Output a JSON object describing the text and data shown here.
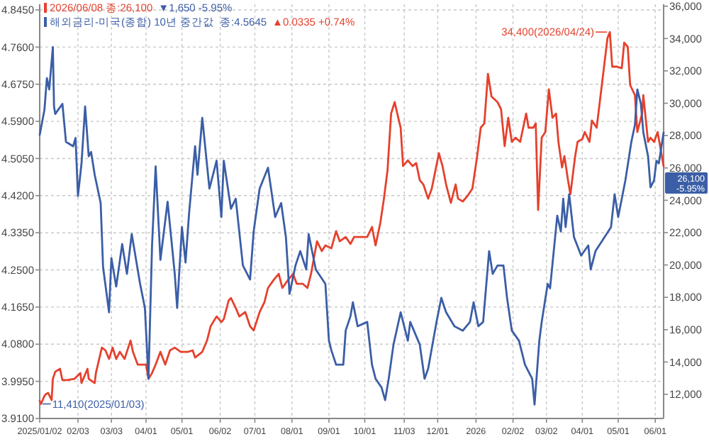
{
  "chart_data": {
    "type": "line",
    "xlim": [
      "2025-01-02",
      "2026-06-08"
    ],
    "xticks": [
      {
        "value": "2025-01-02",
        "label": "2025/01/02"
      },
      {
        "value": "2025-02-03",
        "label": "02/03"
      },
      {
        "value": "2025-03-03",
        "label": "03/03"
      },
      {
        "value": "2025-04-01",
        "label": "04/01"
      },
      {
        "value": "2025-05-01",
        "label": "05/01"
      },
      {
        "value": "2025-06-02",
        "label": "06/02"
      },
      {
        "value": "2025-07-01",
        "label": "07/01"
      },
      {
        "value": "2025-08-01",
        "label": "08/01"
      },
      {
        "value": "2025-09-01",
        "label": "09/01"
      },
      {
        "value": "2025-10-01",
        "label": "10/01"
      },
      {
        "value": "2025-11-03",
        "label": "11/03"
      },
      {
        "value": "2025-12-01",
        "label": "12/01"
      },
      {
        "value": "2026-01-02",
        "label": "2026"
      },
      {
        "value": "2026-02-02",
        "label": "02/02"
      },
      {
        "value": "2026-03-02",
        "label": "03/02"
      },
      {
        "value": "2026-04-01",
        "label": "04/01"
      },
      {
        "value": "2026-05-01",
        "label": "05/01"
      },
      {
        "value": "2026-06-01",
        "label": "06/01"
      }
    ],
    "ylim": [
      3.91,
      4.858
    ],
    "yticks": [
      {
        "value": 3.91,
        "label": "3.9100"
      },
      {
        "value": 3.995,
        "label": "3.9950"
      },
      {
        "value": 4.08,
        "label": "4.0800"
      },
      {
        "value": 4.165,
        "label": "4.1650"
      },
      {
        "value": 4.25,
        "label": "4.2500"
      },
      {
        "value": 4.335,
        "label": "4.3350"
      },
      {
        "value": 4.42,
        "label": "4.4200"
      },
      {
        "value": 4.505,
        "label": "4.5050"
      },
      {
        "value": 4.59,
        "label": "4.5900"
      },
      {
        "value": 4.675,
        "label": "4.6750"
      },
      {
        "value": 4.76,
        "label": "4.7600"
      },
      {
        "value": 4.845,
        "label": "4.8450"
      }
    ],
    "y2lim": [
      10510,
      36120
    ],
    "y2ticks": [
      {
        "value": 12000,
        "label": "12,000"
      },
      {
        "value": 14000,
        "label": "14,000"
      },
      {
        "value": 16000,
        "label": "16,000"
      },
      {
        "value": 18000,
        "label": "18,000"
      },
      {
        "value": 20000,
        "label": "20,000"
      },
      {
        "value": 22000,
        "label": "22,000"
      },
      {
        "value": 24000,
        "label": "24,000"
      },
      {
        "value": 26000,
        "label": "26,000"
      },
      {
        "value": 28000,
        "label": "28,000"
      },
      {
        "value": 30000,
        "label": "30,000"
      },
      {
        "value": 32000,
        "label": "32,000"
      },
      {
        "value": 34000,
        "label": "34,000"
      },
      {
        "value": 36000,
        "label": "36,000"
      }
    ],
    "grid": true,
    "legend": "top left",
    "series": [
      {
        "color": "#e5412d",
        "axis": "y2",
        "x": [
          "2025-01-02",
          "2025-01-03",
          "2025-01-06",
          "2025-01-07",
          "2025-01-09",
          "2025-01-12",
          "2025-01-13",
          "2025-01-15",
          "2025-01-19",
          "2025-01-21",
          "2025-01-25",
          "2025-01-31",
          "2025-02-05",
          "2025-02-06",
          "2025-02-11",
          "2025-02-12",
          "2025-02-17",
          "2025-02-18",
          "2025-02-23",
          "2025-02-26",
          "2025-03-01",
          "2025-03-04",
          "2025-03-07",
          "2025-03-10",
          "2025-03-14",
          "2025-03-19",
          "2025-03-21",
          "2025-03-25",
          "2025-04-01",
          "2025-04-03",
          "2025-04-06",
          "2025-04-09",
          "2025-04-13",
          "2025-04-17",
          "2025-04-21",
          "2025-04-25",
          "2025-04-30",
          "2025-05-06",
          "2025-05-10",
          "2025-05-12",
          "2025-05-18",
          "2025-05-22",
          "2025-05-25",
          "2025-05-30",
          "2025-06-03",
          "2025-06-05",
          "2025-06-09",
          "2025-06-11",
          "2025-06-15",
          "2025-06-18",
          "2025-06-23",
          "2025-06-27",
          "2025-06-30",
          "2025-07-05",
          "2025-07-09",
          "2025-07-12",
          "2025-07-17",
          "2025-07-21",
          "2025-07-24",
          "2025-07-29",
          "2025-08-02",
          "2025-08-05",
          "2025-08-10",
          "2025-08-14",
          "2025-08-17",
          "2025-08-22",
          "2025-08-26",
          "2025-08-29",
          "2025-09-03",
          "2025-09-07",
          "2025-09-10",
          "2025-09-15",
          "2025-09-19",
          "2025-09-22",
          "2025-09-27",
          "2025-10-03",
          "2025-10-07",
          "2025-10-10",
          "2025-10-14",
          "2025-10-17",
          "2025-10-20",
          "2025-10-23",
          "2025-10-26",
          "2025-10-29",
          "2025-10-31",
          "2025-11-02",
          "2025-11-06",
          "2025-11-10",
          "2025-11-13",
          "2025-11-16",
          "2025-11-19",
          "2025-11-23",
          "2025-11-26",
          "2025-12-02",
          "2025-12-05",
          "2025-12-08",
          "2025-12-12",
          "2025-12-16",
          "2025-12-18",
          "2025-12-22",
          "2025-12-26",
          "2025-12-30",
          "2026-01-03",
          "2026-01-06",
          "2026-01-09",
          "2026-01-12",
          "2026-01-15",
          "2026-01-20",
          "2026-01-23",
          "2026-01-26",
          "2026-01-29",
          "2026-02-01",
          "2026-02-04",
          "2026-02-08",
          "2026-02-13",
          "2026-02-15",
          "2026-02-19",
          "2026-02-21",
          "2026-02-23",
          "2026-02-26",
          "2026-03-01",
          "2026-03-04",
          "2026-03-07",
          "2026-03-10",
          "2026-03-12",
          "2026-03-15",
          "2026-03-17",
          "2026-03-20",
          "2026-03-22",
          "2026-03-26",
          "2026-03-28",
          "2026-04-01",
          "2026-04-03",
          "2026-04-07",
          "2026-04-09",
          "2026-04-13",
          "2026-04-22",
          "2026-04-24",
          "2026-04-26",
          "2026-04-30",
          "2026-05-04",
          "2026-05-06",
          "2026-05-09",
          "2026-05-11",
          "2026-05-15",
          "2026-05-17",
          "2026-05-21",
          "2026-05-22",
          "2026-05-26",
          "2026-05-28",
          "2026-05-31",
          "2026-06-03",
          "2026-06-08"
        ],
        "values": [
          11600,
          11410,
          11910,
          12000,
          12090,
          11650,
          12960,
          13400,
          13580,
          12880,
          12880,
          12960,
          13320,
          12700,
          13580,
          12960,
          12700,
          13320,
          14890,
          14720,
          14190,
          14890,
          14190,
          14630,
          14190,
          15330,
          14630,
          13840,
          13840,
          12960,
          13320,
          13840,
          14630,
          13840,
          14720,
          14890,
          14630,
          14630,
          14720,
          14280,
          14630,
          15330,
          16210,
          16820,
          16470,
          16650,
          17790,
          17960,
          17350,
          16820,
          17090,
          16210,
          15950,
          17090,
          17700,
          18580,
          19100,
          19450,
          18580,
          19100,
          19450,
          18840,
          18840,
          18580,
          19450,
          21470,
          20860,
          21210,
          21030,
          22090,
          21470,
          21730,
          21300,
          21730,
          21730,
          21730,
          22350,
          21210,
          22610,
          24100,
          25860,
          29360,
          30070,
          29100,
          28490,
          26120,
          26470,
          26120,
          26300,
          25240,
          24980,
          24100,
          24720,
          26910,
          26120,
          24980,
          23840,
          24980,
          24100,
          23930,
          24280,
          24720,
          26730,
          28490,
          28750,
          31820,
          30420,
          30070,
          29630,
          27350,
          29100,
          27610,
          27870,
          27610,
          29360,
          28490,
          28490,
          28750,
          23400,
          27870,
          28220,
          30860,
          29100,
          29360,
          27610,
          26030,
          26730,
          25240,
          24370,
          26730,
          27610,
          27790,
          28220,
          27610,
          28930,
          28490,
          34010,
          34400,
          32260,
          32260,
          32170,
          33750,
          33490,
          31120,
          30500,
          28220,
          29360,
          30500,
          27610,
          27870,
          27610,
          28220,
          26100
        ]
      },
      {
        "name": "해외금리-미국(종합) 10년 중간값",
        "color": "#3b5ea6",
        "x": [
          "2025-01-02",
          "2025-01-06",
          "2025-01-08",
          "2025-01-10",
          "2025-01-13",
          "2025-01-14",
          "2025-01-15",
          "2025-01-21",
          "2025-01-24",
          "2025-01-30",
          "2025-02-01",
          "2025-02-03",
          "2025-02-06",
          "2025-02-09",
          "2025-02-12",
          "2025-02-14",
          "2025-02-17",
          "2025-02-22",
          "2025-02-24",
          "2025-03-01",
          "2025-03-03",
          "2025-03-07",
          "2025-03-12",
          "2025-03-16",
          "2025-03-20",
          "2025-03-27",
          "2025-03-31",
          "2025-04-03",
          "2025-04-06",
          "2025-04-09",
          "2025-04-13",
          "2025-04-19",
          "2025-04-25",
          "2025-04-27",
          "2025-05-01",
          "2025-05-04",
          "2025-05-07",
          "2025-05-12",
          "2025-05-14",
          "2025-05-18",
          "2025-05-24",
          "2025-05-30",
          "2025-06-03",
          "2025-06-05",
          "2025-06-11",
          "2025-06-15",
          "2025-06-21",
          "2025-06-27",
          "2025-06-30",
          "2025-07-05",
          "2025-07-12",
          "2025-07-18",
          "2025-07-23",
          "2025-07-27",
          "2025-07-30",
          "2025-08-04",
          "2025-08-08",
          "2025-08-13",
          "2025-08-15",
          "2025-08-21",
          "2025-08-29",
          "2025-09-01",
          "2025-09-03",
          "2025-09-07",
          "2025-09-13",
          "2025-09-15",
          "2025-09-19",
          "2025-09-21",
          "2025-09-25",
          "2025-10-03",
          "2025-10-07",
          "2025-10-10",
          "2025-10-15",
          "2025-10-18",
          "2025-10-21",
          "2025-10-25",
          "2025-10-31",
          "2025-11-06",
          "2025-11-08",
          "2025-11-16",
          "2025-11-20",
          "2025-11-23",
          "2025-11-30",
          "2025-12-04",
          "2025-12-08",
          "2025-12-15",
          "2025-12-22",
          "2025-12-28",
          "2025-12-31",
          "2026-01-04",
          "2026-01-08",
          "2026-01-13",
          "2026-01-16",
          "2026-01-20",
          "2026-01-25",
          "2026-01-28",
          "2026-02-01",
          "2026-02-07",
          "2026-02-12",
          "2026-02-18",
          "2026-02-20",
          "2026-02-24",
          "2026-02-26",
          "2026-03-03",
          "2026-03-05",
          "2026-03-11",
          "2026-03-14",
          "2026-03-16",
          "2026-03-18",
          "2026-03-21",
          "2026-03-25",
          "2026-03-31",
          "2026-04-06",
          "2026-04-08",
          "2026-04-12",
          "2026-04-25",
          "2026-04-28",
          "2026-05-01",
          "2026-05-07",
          "2026-05-12",
          "2026-05-15",
          "2026-05-17",
          "2026-05-20",
          "2026-05-22",
          "2026-05-26",
          "2026-05-28",
          "2026-05-31",
          "2026-06-02",
          "2026-06-04",
          "2026-06-08"
        ],
        "values": [
          4.559,
          4.617,
          4.689,
          4.663,
          4.76,
          4.624,
          4.607,
          4.63,
          4.543,
          4.533,
          4.552,
          4.419,
          4.494,
          4.624,
          4.51,
          4.52,
          4.468,
          4.403,
          4.257,
          4.153,
          4.277,
          4.212,
          4.309,
          4.241,
          4.332,
          4.218,
          4.163,
          4.001,
          4.306,
          4.487,
          4.273,
          4.406,
          4.241,
          4.163,
          4.348,
          4.267,
          4.38,
          4.533,
          4.468,
          4.598,
          4.436,
          4.5,
          4.371,
          4.5,
          4.39,
          4.413,
          4.26,
          4.228,
          4.338,
          4.436,
          4.484,
          4.371,
          4.403,
          4.325,
          4.195,
          4.26,
          4.293,
          4.251,
          4.332,
          4.251,
          4.218,
          4.088,
          4.066,
          4.033,
          4.033,
          4.111,
          4.144,
          4.176,
          4.121,
          4.131,
          4.033,
          4.001,
          3.981,
          3.952,
          4.001,
          4.079,
          4.153,
          4.088,
          4.131,
          4.079,
          4.001,
          4.024,
          4.131,
          4.186,
          4.153,
          4.121,
          4.111,
          4.131,
          4.176,
          4.121,
          4.131,
          4.293,
          4.241,
          4.26,
          4.26,
          4.186,
          4.111,
          4.088,
          4.033,
          4.001,
          3.942,
          4.088,
          4.131,
          4.218,
          4.208,
          4.374,
          4.338,
          4.413,
          4.348,
          4.423,
          4.325,
          4.283,
          4.306,
          4.251,
          4.293,
          4.348,
          4.423,
          4.371,
          4.455,
          4.543,
          4.582,
          4.663,
          4.63,
          4.565,
          4.51,
          4.439,
          4.455,
          4.5,
          4.494,
          4.5645
        ]
      }
    ],
    "annotations": [
      "2026/06/08 종:26,100",
      "▼1,650  -5.95%",
      "종:4.5645",
      "▲0.0335  +0.74%",
      "11,410(2025/01/03)",
      "34,400(2026/04/24)",
      "26,100 -5.95%"
    ]
  }
}
